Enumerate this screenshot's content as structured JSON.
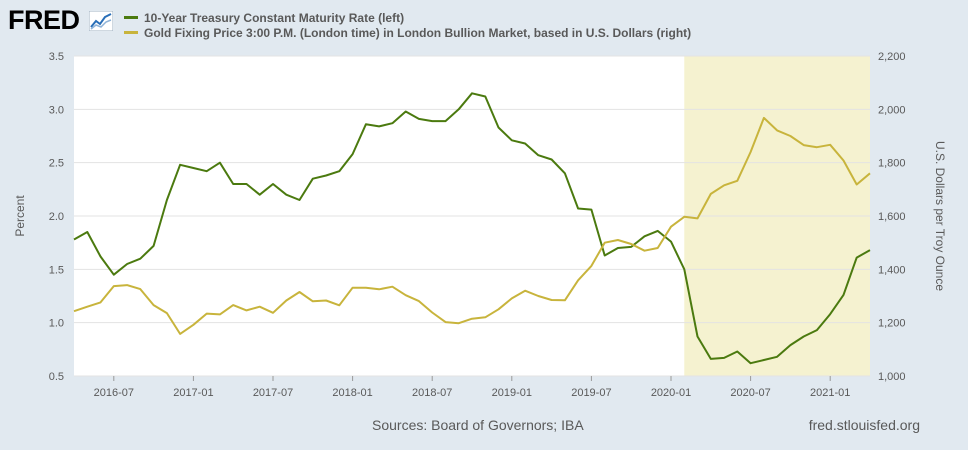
{
  "header": {
    "logo_text": "FRED",
    "logo_icon": "trend-chart-icon"
  },
  "legend": [
    {
      "label": "10-Year Treasury Constant Maturity Rate (left)",
      "color": "#4b7a0f"
    },
    {
      "label": "Gold Fixing Price 3:00 P.M. (London time) in London Bullion Market, based in U.S. Dollars (right)",
      "color": "#c8b43c"
    }
  ],
  "footer": {
    "sources": "Sources: Board of Governors; IBA",
    "credit": "fred.stlouisfed.org"
  },
  "chart_data": {
    "type": "line",
    "ylabel_left": "Percent",
    "ylabel_right": "U.S. Dollars per Troy Ounce",
    "x_ticks": [
      "2016-07",
      "2017-01",
      "2017-07",
      "2018-01",
      "2018-07",
      "2019-01",
      "2019-07",
      "2020-01",
      "2020-07",
      "2021-01"
    ],
    "x_range": [
      "2016-04",
      "2021-04"
    ],
    "ylim_left": [
      0.5,
      3.5
    ],
    "ylim_right": [
      1000,
      2200
    ],
    "y_ticks_left": [
      "0.5",
      "1.0",
      "1.5",
      "2.0",
      "2.5",
      "3.0",
      "3.5"
    ],
    "y_ticks_right": [
      "1,000",
      "1,200",
      "1,400",
      "1,600",
      "1,800",
      "2,000",
      "2,200"
    ],
    "recession": {
      "start": "2020-02",
      "end": "2021-04",
      "color": "#f5f2d0"
    },
    "grid": true,
    "series": [
      {
        "name": "10-Year Treasury Constant Maturity Rate (left)",
        "axis": "left",
        "color": "#4b7a0f",
        "points": [
          [
            "2016-04",
            1.78
          ],
          [
            "2016-05",
            1.85
          ],
          [
            "2016-06",
            1.62
          ],
          [
            "2016-07",
            1.45
          ],
          [
            "2016-08",
            1.55
          ],
          [
            "2016-09",
            1.6
          ],
          [
            "2016-10",
            1.72
          ],
          [
            "2016-11",
            2.15
          ],
          [
            "2016-12",
            2.48
          ],
          [
            "2017-01",
            2.45
          ],
          [
            "2017-02",
            2.42
          ],
          [
            "2017-03",
            2.5
          ],
          [
            "2017-04",
            2.3
          ],
          [
            "2017-05",
            2.3
          ],
          [
            "2017-06",
            2.2
          ],
          [
            "2017-07",
            2.3
          ],
          [
            "2017-08",
            2.2
          ],
          [
            "2017-09",
            2.15
          ],
          [
            "2017-10",
            2.35
          ],
          [
            "2017-11",
            2.38
          ],
          [
            "2017-12",
            2.42
          ],
          [
            "2018-01",
            2.58
          ],
          [
            "2018-02",
            2.86
          ],
          [
            "2018-03",
            2.84
          ],
          [
            "2018-04",
            2.87
          ],
          [
            "2018-05",
            2.98
          ],
          [
            "2018-06",
            2.91
          ],
          [
            "2018-07",
            2.89
          ],
          [
            "2018-08",
            2.89
          ],
          [
            "2018-09",
            3.0
          ],
          [
            "2018-10",
            3.15
          ],
          [
            "2018-11",
            3.12
          ],
          [
            "2018-12",
            2.83
          ],
          [
            "2019-01",
            2.71
          ],
          [
            "2019-02",
            2.68
          ],
          [
            "2019-03",
            2.57
          ],
          [
            "2019-04",
            2.53
          ],
          [
            "2019-05",
            2.4
          ],
          [
            "2019-06",
            2.07
          ],
          [
            "2019-07",
            2.06
          ],
          [
            "2019-08",
            1.63
          ],
          [
            "2019-09",
            1.7
          ],
          [
            "2019-10",
            1.71
          ],
          [
            "2019-11",
            1.81
          ],
          [
            "2019-12",
            1.86
          ],
          [
            "2020-01",
            1.76
          ],
          [
            "2020-02",
            1.5
          ],
          [
            "2020-03",
            0.87
          ],
          [
            "2020-04",
            0.66
          ],
          [
            "2020-05",
            0.67
          ],
          [
            "2020-06",
            0.73
          ],
          [
            "2020-07",
            0.62
          ],
          [
            "2020-08",
            0.65
          ],
          [
            "2020-09",
            0.68
          ],
          [
            "2020-10",
            0.79
          ],
          [
            "2020-11",
            0.87
          ],
          [
            "2020-12",
            0.93
          ],
          [
            "2021-01",
            1.08
          ],
          [
            "2021-02",
            1.26
          ],
          [
            "2021-03",
            1.61
          ],
          [
            "2021-04",
            1.68
          ]
        ]
      },
      {
        "name": "Gold Fixing Price 3:00 P.M. (London time) in London Bullion Market, based in U.S. Dollars (right)",
        "axis": "right",
        "color": "#c8b43c",
        "points": [
          [
            "2016-04",
            1243
          ],
          [
            "2016-05",
            1260
          ],
          [
            "2016-06",
            1276
          ],
          [
            "2016-07",
            1337
          ],
          [
            "2016-08",
            1341
          ],
          [
            "2016-09",
            1326
          ],
          [
            "2016-10",
            1266
          ],
          [
            "2016-11",
            1236
          ],
          [
            "2016-12",
            1158
          ],
          [
            "2017-01",
            1192
          ],
          [
            "2017-02",
            1234
          ],
          [
            "2017-03",
            1231
          ],
          [
            "2017-04",
            1266
          ],
          [
            "2017-05",
            1246
          ],
          [
            "2017-06",
            1260
          ],
          [
            "2017-07",
            1237
          ],
          [
            "2017-08",
            1283
          ],
          [
            "2017-09",
            1315
          ],
          [
            "2017-10",
            1280
          ],
          [
            "2017-11",
            1283
          ],
          [
            "2017-12",
            1265
          ],
          [
            "2018-01",
            1331
          ],
          [
            "2018-02",
            1331
          ],
          [
            "2018-03",
            1325
          ],
          [
            "2018-04",
            1335
          ],
          [
            "2018-05",
            1303
          ],
          [
            "2018-06",
            1281
          ],
          [
            "2018-07",
            1238
          ],
          [
            "2018-08",
            1202
          ],
          [
            "2018-09",
            1198
          ],
          [
            "2018-10",
            1215
          ],
          [
            "2018-11",
            1220
          ],
          [
            "2018-12",
            1250
          ],
          [
            "2019-01",
            1291
          ],
          [
            "2019-02",
            1320
          ],
          [
            "2019-03",
            1300
          ],
          [
            "2019-04",
            1285
          ],
          [
            "2019-05",
            1284
          ],
          [
            "2019-06",
            1359
          ],
          [
            "2019-07",
            1413
          ],
          [
            "2019-08",
            1500
          ],
          [
            "2019-09",
            1510
          ],
          [
            "2019-10",
            1495
          ],
          [
            "2019-11",
            1470
          ],
          [
            "2019-12",
            1480
          ],
          [
            "2020-01",
            1560
          ],
          [
            "2020-02",
            1597
          ],
          [
            "2020-03",
            1591
          ],
          [
            "2020-04",
            1683
          ],
          [
            "2020-05",
            1715
          ],
          [
            "2020-06",
            1732
          ],
          [
            "2020-07",
            1840
          ],
          [
            "2020-08",
            1968
          ],
          [
            "2020-09",
            1921
          ],
          [
            "2020-10",
            1900
          ],
          [
            "2020-11",
            1866
          ],
          [
            "2020-12",
            1858
          ],
          [
            "2021-01",
            1867
          ],
          [
            "2021-02",
            1808
          ],
          [
            "2021-03",
            1718
          ],
          [
            "2021-04",
            1760
          ]
        ]
      }
    ]
  }
}
